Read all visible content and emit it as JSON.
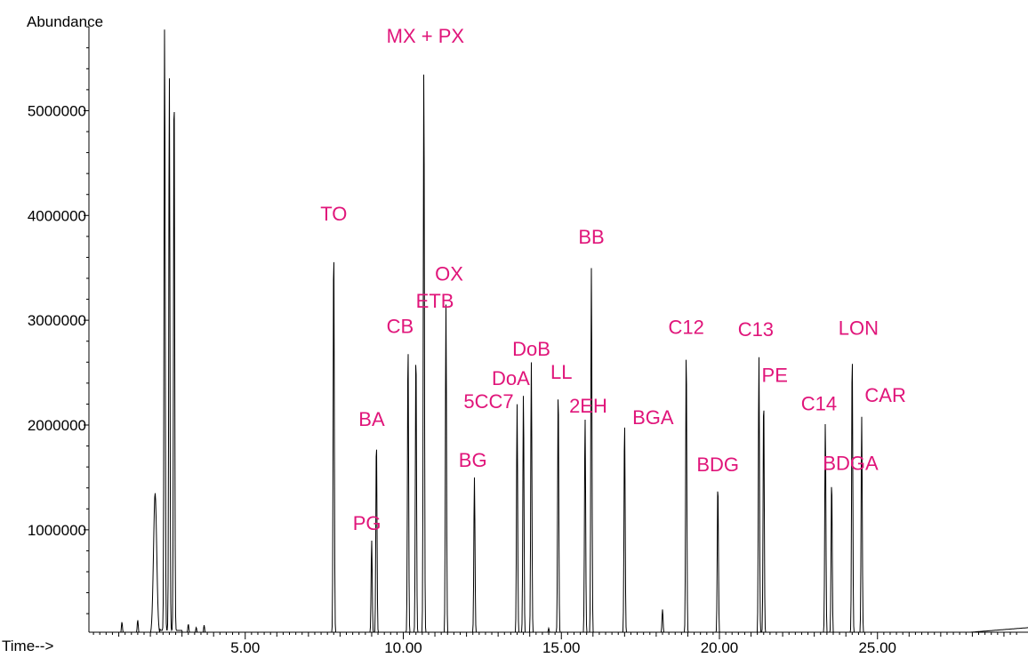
{
  "chart_data": {
    "type": "line",
    "ylabel": "Abundance",
    "xlabel": "Time-->",
    "xlim": [
      0.0,
      29.5
    ],
    "ylim": [
      0,
      5800000
    ],
    "x_ticks": [
      "5.00",
      "10.00",
      "15.00",
      "20.00",
      "25.00"
    ],
    "y_ticks": [
      "1000000",
      "2000000",
      "3000000",
      "4000000",
      "5000000"
    ],
    "label_color": "#e0157a",
    "trace_color": "#000000",
    "peaks": [
      {
        "t": 1.1,
        "h": 120000
      },
      {
        "t": 1.6,
        "h": 140000
      },
      {
        "t": 2.15,
        "h": 1350000,
        "w": 0.05
      },
      {
        "t": 2.45,
        "h": 5800000
      },
      {
        "t": 2.6,
        "h": 5300000
      },
      {
        "t": 2.75,
        "h": 5300000
      },
      {
        "t": 3.2,
        "h": 100000
      },
      {
        "t": 3.45,
        "h": 70000
      },
      {
        "t": 3.7,
        "h": 90000
      },
      {
        "t": 7.8,
        "h": 3750000
      },
      {
        "t": 9.0,
        "h": 900000
      },
      {
        "t": 9.15,
        "h": 1870000
      },
      {
        "t": 10.15,
        "h": 2770000
      },
      {
        "t": 10.4,
        "h": 2730000
      },
      {
        "t": 10.65,
        "h": 5420000
      },
      {
        "t": 11.35,
        "h": 3150000
      },
      {
        "t": 12.25,
        "h": 1500000
      },
      {
        "t": 13.6,
        "h": 2200000
      },
      {
        "t": 13.8,
        "h": 2300000
      },
      {
        "t": 14.05,
        "h": 2600000
      },
      {
        "t": 14.6,
        "h": 60000
      },
      {
        "t": 14.9,
        "h": 2350000
      },
      {
        "t": 15.75,
        "h": 2070000
      },
      {
        "t": 15.95,
        "h": 3500000
      },
      {
        "t": 17.0,
        "h": 2030000
      },
      {
        "t": 18.2,
        "h": 240000
      },
      {
        "t": 18.95,
        "h": 2720000
      },
      {
        "t": 19.95,
        "h": 1450000
      },
      {
        "t": 21.25,
        "h": 2660000
      },
      {
        "t": 21.4,
        "h": 2280000
      },
      {
        "t": 23.35,
        "h": 2030000
      },
      {
        "t": 23.55,
        "h": 1480000
      },
      {
        "t": 24.2,
        "h": 2700000
      },
      {
        "t": 24.5,
        "h": 2080000
      }
    ],
    "labels": [
      {
        "text": "TO",
        "t": 7.8,
        "y": 3950000
      },
      {
        "text": "BA",
        "t": 9.0,
        "y": 1990000
      },
      {
        "text": "PG",
        "t": 8.85,
        "y": 1000000
      },
      {
        "text": "CB",
        "t": 9.9,
        "y": 2880000
      },
      {
        "text": "ETB",
        "t": 11.0,
        "y": 3120000
      },
      {
        "text": "MX + PX",
        "t": 10.7,
        "y": 5650000
      },
      {
        "text": "OX",
        "t": 11.45,
        "y": 3380000
      },
      {
        "text": "BG",
        "t": 12.2,
        "y": 1600000
      },
      {
        "text": "5CC7",
        "t": 12.7,
        "y": 2160000
      },
      {
        "text": "DoA",
        "t": 13.4,
        "y": 2380000
      },
      {
        "text": "DoB",
        "t": 14.05,
        "y": 2660000
      },
      {
        "text": "LL",
        "t": 15.0,
        "y": 2440000
      },
      {
        "text": "2EH",
        "t": 15.85,
        "y": 2120000
      },
      {
        "text": "BB",
        "t": 15.95,
        "y": 3730000
      },
      {
        "text": "BGA",
        "t": 17.9,
        "y": 2010000
      },
      {
        "text": "C12",
        "t": 18.95,
        "y": 2870000
      },
      {
        "text": "BDG",
        "t": 19.95,
        "y": 1560000
      },
      {
        "text": "C13",
        "t": 21.15,
        "y": 2850000
      },
      {
        "text": "PE",
        "t": 21.75,
        "y": 2410000
      },
      {
        "text": "C14",
        "t": 23.15,
        "y": 2140000
      },
      {
        "text": "BDGA",
        "t": 24.15,
        "y": 1570000
      },
      {
        "text": "LON",
        "t": 24.4,
        "y": 2860000
      },
      {
        "text": "CAR",
        "t": 25.25,
        "y": 2220000
      }
    ]
  }
}
